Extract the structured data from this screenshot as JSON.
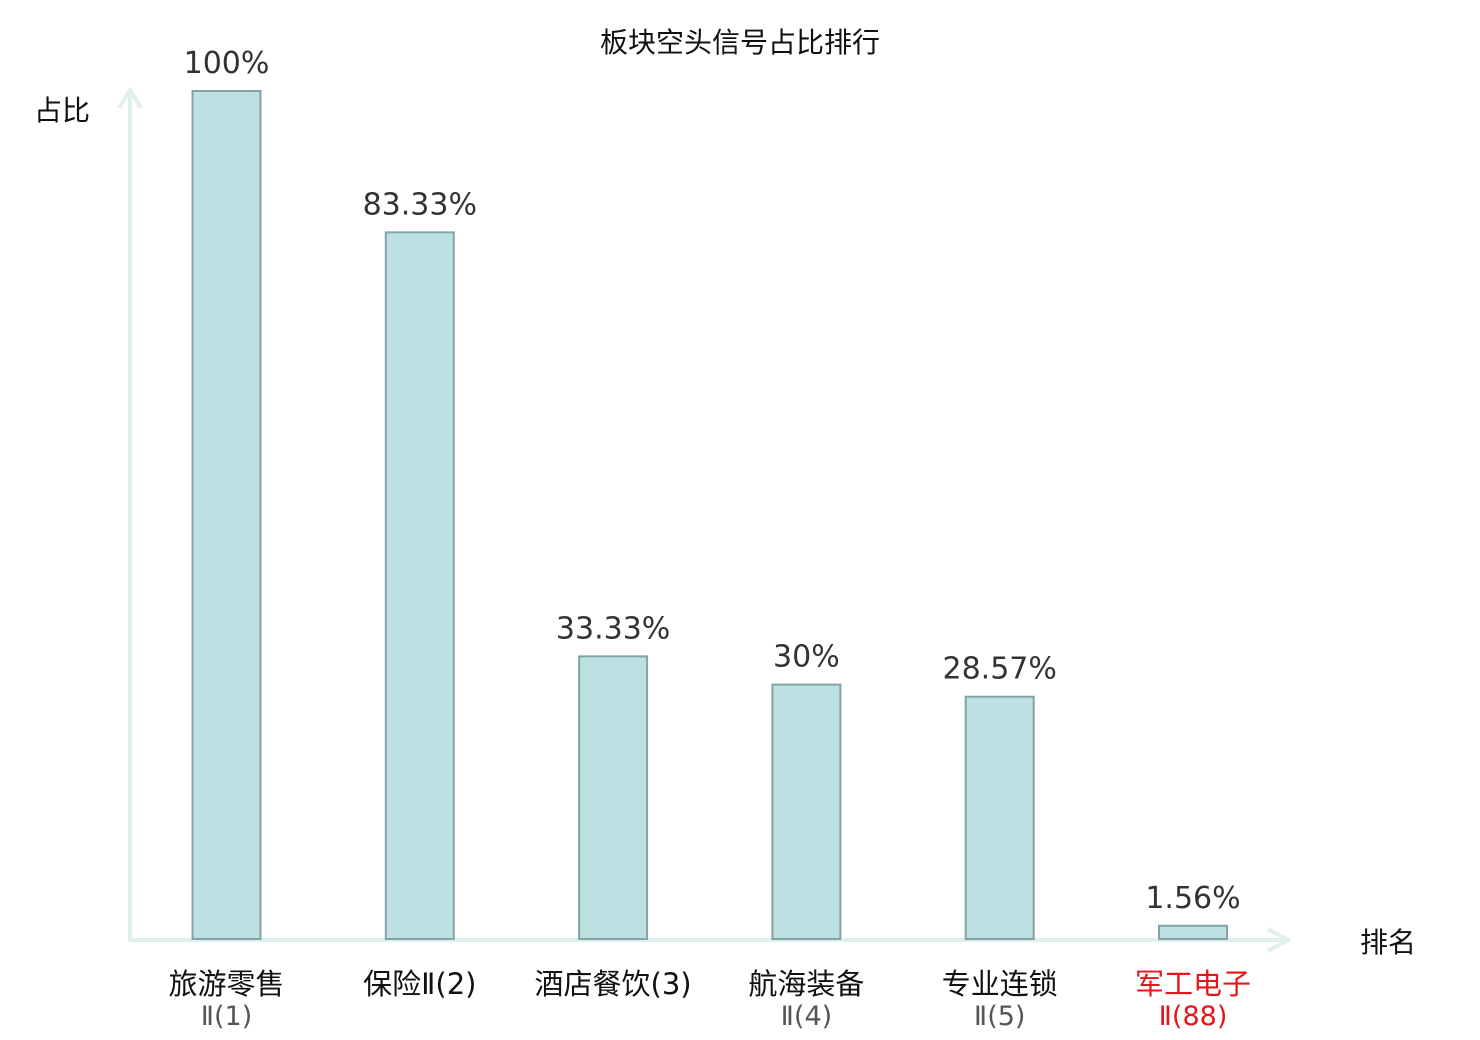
{
  "chart_data": {
    "type": "bar",
    "title": "板块空头信号占比排行",
    "ylabel": "占比",
    "xlabel": "排名",
    "ylim": [
      0,
      100
    ],
    "grid": false,
    "categories": [
      {
        "line1": "旅游零售",
        "line2": "Ⅱ(1)",
        "highlight": false
      },
      {
        "line1": "保险Ⅱ(2)",
        "line2": "",
        "highlight": false
      },
      {
        "line1": "酒店餐饮(3)",
        "line2": "",
        "highlight": false
      },
      {
        "line1": "航海装备",
        "line2": "Ⅱ(4)",
        "highlight": false
      },
      {
        "line1": "专业连锁",
        "line2": "Ⅱ(5)",
        "highlight": false
      },
      {
        "line1": "军工电子",
        "line2": "Ⅱ(88)",
        "highlight": true
      }
    ],
    "values": [
      100,
      83.33,
      33.33,
      30,
      28.57,
      1.56
    ],
    "value_labels": [
      "100%",
      "83.33%",
      "33.33%",
      "30%",
      "28.57%",
      "1.56%"
    ],
    "colors": {
      "bar_fill": "#bde0e3",
      "bar_stroke": "#84a3a6",
      "axis": "#dff1ee",
      "highlight_text": "#e8141b"
    }
  }
}
